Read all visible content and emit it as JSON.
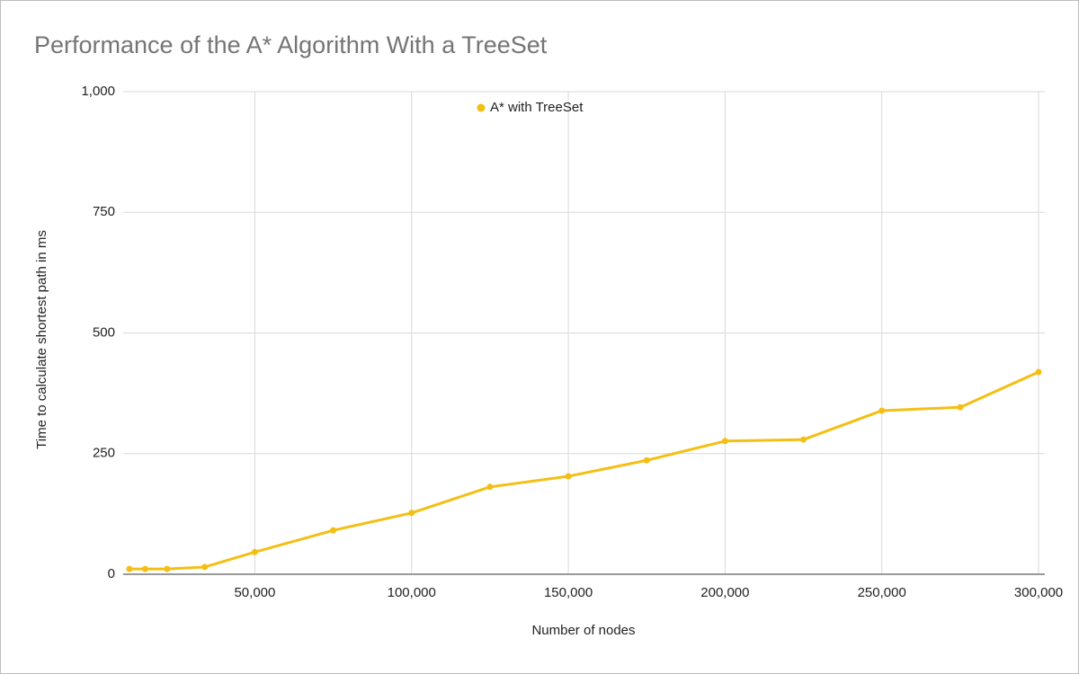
{
  "chart_data": {
    "type": "line",
    "title": "Performance of the A* Algorithm With a TreeSet",
    "x_label": "Number of nodes",
    "y_label": "Time to calculate shortest path in ms",
    "x": [
      10000,
      15000,
      22000,
      34000,
      50000,
      75000,
      100000,
      125000,
      150000,
      175000,
      200000,
      225000,
      250000,
      275000,
      300000
    ],
    "series": [
      {
        "name": "A* with TreeSet",
        "color": "#f4bf14",
        "values": [
          11,
          11,
          11,
          15,
          46,
          91,
          127,
          181,
          203,
          236,
          276,
          279,
          339,
          346,
          419
        ]
      }
    ],
    "xlim": [
      8000,
      302000
    ],
    "ylim": [
      0,
      1000
    ],
    "xticks": [
      {
        "value": 50000,
        "label": "50,000"
      },
      {
        "value": 100000,
        "label": "100,000"
      },
      {
        "value": 150000,
        "label": "150,000"
      },
      {
        "value": 200000,
        "label": "200,000"
      },
      {
        "value": 250000,
        "label": "250,000"
      },
      {
        "value": 300000,
        "label": "300,000"
      }
    ],
    "yticks": [
      0,
      250,
      500,
      750,
      {
        "value": 1000,
        "label": "1,000"
      }
    ],
    "grid": true,
    "legend": "top"
  }
}
